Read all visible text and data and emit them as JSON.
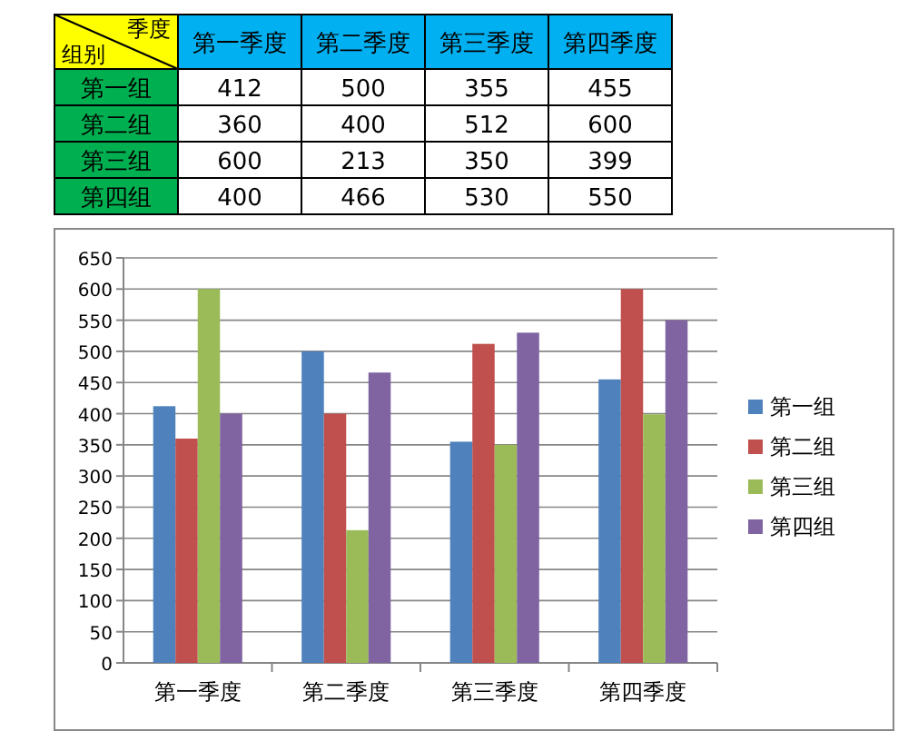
{
  "chart_data": {
    "type": "bar",
    "categories": [
      "第一季度",
      "第二季度",
      "第三季度",
      "第四季度"
    ],
    "series": [
      {
        "name": "第一组",
        "color": "#4f81bd",
        "values": [
          412,
          500,
          355,
          455
        ]
      },
      {
        "name": "第二组",
        "color": "#c0504d",
        "values": [
          360,
          400,
          512,
          600
        ]
      },
      {
        "name": "第三组",
        "color": "#9bbb59",
        "values": [
          600,
          213,
          350,
          399
        ]
      },
      {
        "name": "第四组",
        "color": "#8064a2",
        "values": [
          400,
          466,
          530,
          550
        ]
      }
    ],
    "ylim": [
      0,
      650
    ],
    "yticks": [
      0,
      50,
      100,
      150,
      200,
      250,
      300,
      350,
      400,
      450,
      500,
      550,
      600,
      650
    ],
    "grid": "y",
    "legend": "right",
    "data_labels": true,
    "annotations": [
      "季度",
      "组别"
    ]
  }
}
